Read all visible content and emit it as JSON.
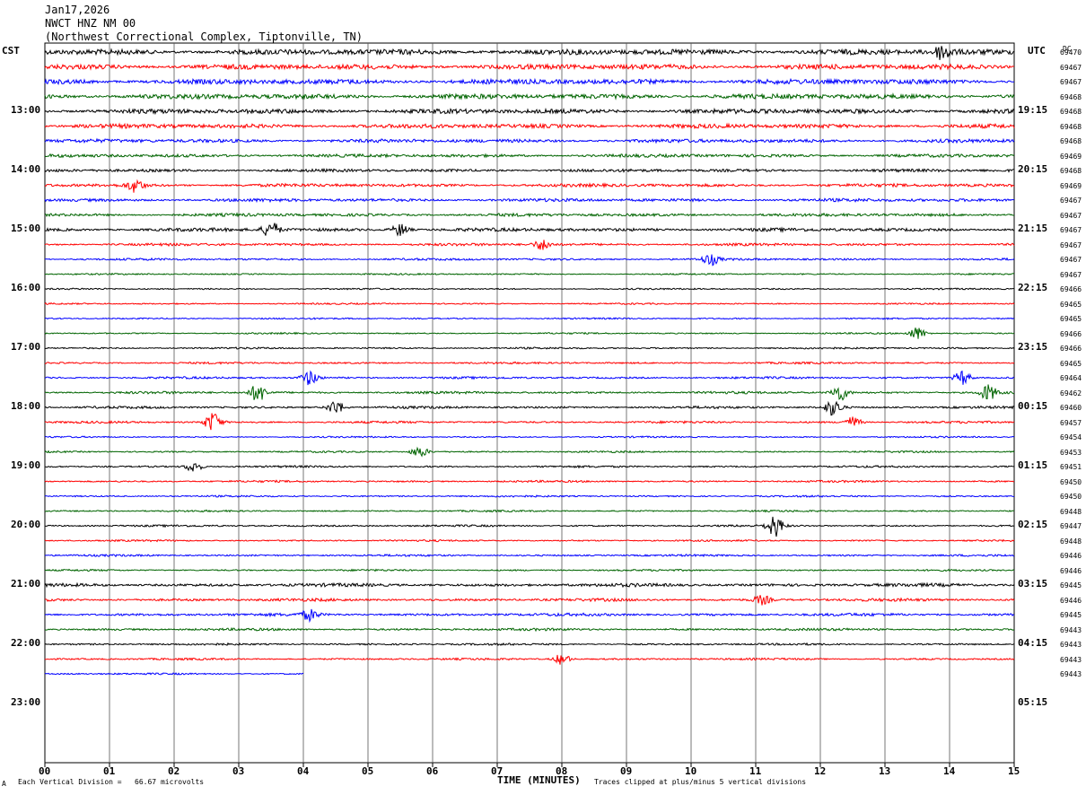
{
  "header": {
    "date": "Jan17,2026",
    "station": "NWCT HNZ NM 00",
    "location": "(Northwest Correctional Complex, Tiptonville, TN)"
  },
  "left_timezone": "CST",
  "right_timezone": "UTC",
  "dc_label": "DC",
  "footer": {
    "scale": "Each Vertical Division =   66.67 microvolts",
    "clip": "Traces clipped at plus/minus 5 vertical divisions",
    "corner_mark": "A"
  },
  "colors": {
    "cycle": [
      "#000000",
      "#ff0000",
      "#0000ff",
      "#006400"
    ],
    "grid": "#555555"
  },
  "chart_data": {
    "type": "line",
    "title": "",
    "xlabel": "TIME (MINUTES)",
    "xlim": [
      0,
      15
    ],
    "x_ticks": [
      "00",
      "01",
      "02",
      "03",
      "04",
      "05",
      "06",
      "07",
      "08",
      "09",
      "10",
      "11",
      "12",
      "13",
      "14",
      "15"
    ],
    "row_interval_minutes": 15,
    "left_labels": [
      {
        "row": 0,
        "text": "CST"
      },
      {
        "row": 4,
        "text": "13:00"
      },
      {
        "row": 8,
        "text": "14:00"
      },
      {
        "row": 12,
        "text": "15:00"
      },
      {
        "row": 16,
        "text": "16:00"
      },
      {
        "row": 20,
        "text": "17:00"
      },
      {
        "row": 24,
        "text": "18:00"
      },
      {
        "row": 28,
        "text": "19:00"
      },
      {
        "row": 32,
        "text": "20:00"
      },
      {
        "row": 36,
        "text": "21:00"
      },
      {
        "row": 40,
        "text": "22:00"
      },
      {
        "row": 44,
        "text": "23:00"
      }
    ],
    "right_labels": [
      {
        "row": 0,
        "text": "UTC"
      },
      {
        "row": 4,
        "text": "19:15"
      },
      {
        "row": 8,
        "text": "20:15"
      },
      {
        "row": 12,
        "text": "21:15"
      },
      {
        "row": 16,
        "text": "22:15"
      },
      {
        "row": 20,
        "text": "23:15"
      },
      {
        "row": 24,
        "text": "00:15"
      },
      {
        "row": 28,
        "text": "01:15"
      },
      {
        "row": 32,
        "text": "02:15"
      },
      {
        "row": 36,
        "text": "03:15"
      },
      {
        "row": 40,
        "text": "04:15"
      },
      {
        "row": 44,
        "text": "05:15"
      }
    ],
    "dc_offsets": [
      "69470",
      "69467",
      "69467",
      "69468",
      "69468",
      "69468",
      "69468",
      "69469",
      "69468",
      "69469",
      "69467",
      "69467",
      "69467",
      "69467",
      "69467",
      "69467",
      "69466",
      "69465",
      "69465",
      "69466",
      "69466",
      "69465",
      "69464",
      "69462",
      "69460",
      "69457",
      "69454",
      "69453",
      "69451",
      "69450",
      "69450",
      "69448",
      "69447",
      "69448",
      "69446",
      "69446",
      "69445",
      "69446",
      "69445",
      "69443",
      "69443",
      "69443",
      "69443"
    ],
    "traces_drawn": 43,
    "last_trace_end_minute": 4.0,
    "activity": [
      {
        "row": 0,
        "amp": 2.6
      },
      {
        "row": 1,
        "amp": 2.4
      },
      {
        "row": 2,
        "amp": 2.4
      },
      {
        "row": 3,
        "amp": 2.3
      },
      {
        "row": 4,
        "amp": 2.2
      },
      {
        "row": 5,
        "amp": 2.0
      },
      {
        "row": 6,
        "amp": 1.7
      },
      {
        "row": 7,
        "amp": 1.5
      },
      {
        "row": 8,
        "amp": 1.4
      },
      {
        "row": 9,
        "amp": 1.5
      },
      {
        "row": 10,
        "amp": 1.5
      },
      {
        "row": 11,
        "amp": 1.4
      },
      {
        "row": 12,
        "amp": 1.6
      },
      {
        "row": 13,
        "amp": 1.2
      },
      {
        "row": 14,
        "amp": 1.0
      },
      {
        "row": 15,
        "amp": 0.7
      },
      {
        "row": 16,
        "amp": 0.7
      },
      {
        "row": 17,
        "amp": 0.7
      },
      {
        "row": 18,
        "amp": 0.7
      },
      {
        "row": 19,
        "amp": 0.7
      },
      {
        "row": 20,
        "amp": 0.8
      },
      {
        "row": 21,
        "amp": 0.9
      },
      {
        "row": 22,
        "amp": 1.0
      },
      {
        "row": 23,
        "amp": 1.1
      },
      {
        "row": 24,
        "amp": 1.1
      },
      {
        "row": 25,
        "amp": 1.0
      },
      {
        "row": 26,
        "amp": 0.7
      },
      {
        "row": 27,
        "amp": 0.8
      },
      {
        "row": 28,
        "amp": 0.9
      },
      {
        "row": 29,
        "amp": 0.9
      },
      {
        "row": 30,
        "amp": 0.8
      },
      {
        "row": 31,
        "amp": 0.8
      },
      {
        "row": 32,
        "amp": 0.9
      },
      {
        "row": 33,
        "amp": 0.8
      },
      {
        "row": 34,
        "amp": 0.9
      },
      {
        "row": 35,
        "amp": 0.8
      },
      {
        "row": 36,
        "amp": 1.5
      },
      {
        "row": 37,
        "amp": 1.3
      },
      {
        "row": 38,
        "amp": 1.3
      },
      {
        "row": 39,
        "amp": 1.1
      },
      {
        "row": 40,
        "amp": 0.9
      },
      {
        "row": 41,
        "amp": 0.9
      },
      {
        "row": 42,
        "amp": 0.8
      }
    ],
    "bursts": [
      {
        "row": 0,
        "minute": 13.9,
        "amp": 9
      },
      {
        "row": 9,
        "minute": 1.4,
        "amp": 7
      },
      {
        "row": 12,
        "minute": 3.5,
        "amp": 9
      },
      {
        "row": 12,
        "minute": 5.5,
        "amp": 7
      },
      {
        "row": 13,
        "minute": 7.7,
        "amp": 6
      },
      {
        "row": 14,
        "minute": 10.3,
        "amp": 6
      },
      {
        "row": 19,
        "minute": 13.5,
        "amp": 7
      },
      {
        "row": 22,
        "minute": 4.1,
        "amp": 8
      },
      {
        "row": 22,
        "minute": 14.2,
        "amp": 8
      },
      {
        "row": 23,
        "minute": 3.3,
        "amp": 10
      },
      {
        "row": 23,
        "minute": 12.3,
        "amp": 9
      },
      {
        "row": 23,
        "minute": 14.6,
        "amp": 9
      },
      {
        "row": 24,
        "minute": 4.5,
        "amp": 8
      },
      {
        "row": 24,
        "minute": 12.2,
        "amp": 9
      },
      {
        "row": 25,
        "minute": 2.6,
        "amp": 11
      },
      {
        "row": 25,
        "minute": 12.5,
        "amp": 6
      },
      {
        "row": 27,
        "minute": 5.8,
        "amp": 6
      },
      {
        "row": 28,
        "minute": 2.3,
        "amp": 6
      },
      {
        "row": 32,
        "minute": 11.3,
        "amp": 12
      },
      {
        "row": 37,
        "minute": 11.1,
        "amp": 5
      },
      {
        "row": 38,
        "minute": 4.1,
        "amp": 6
      },
      {
        "row": 41,
        "minute": 8.0,
        "amp": 6
      }
    ]
  }
}
